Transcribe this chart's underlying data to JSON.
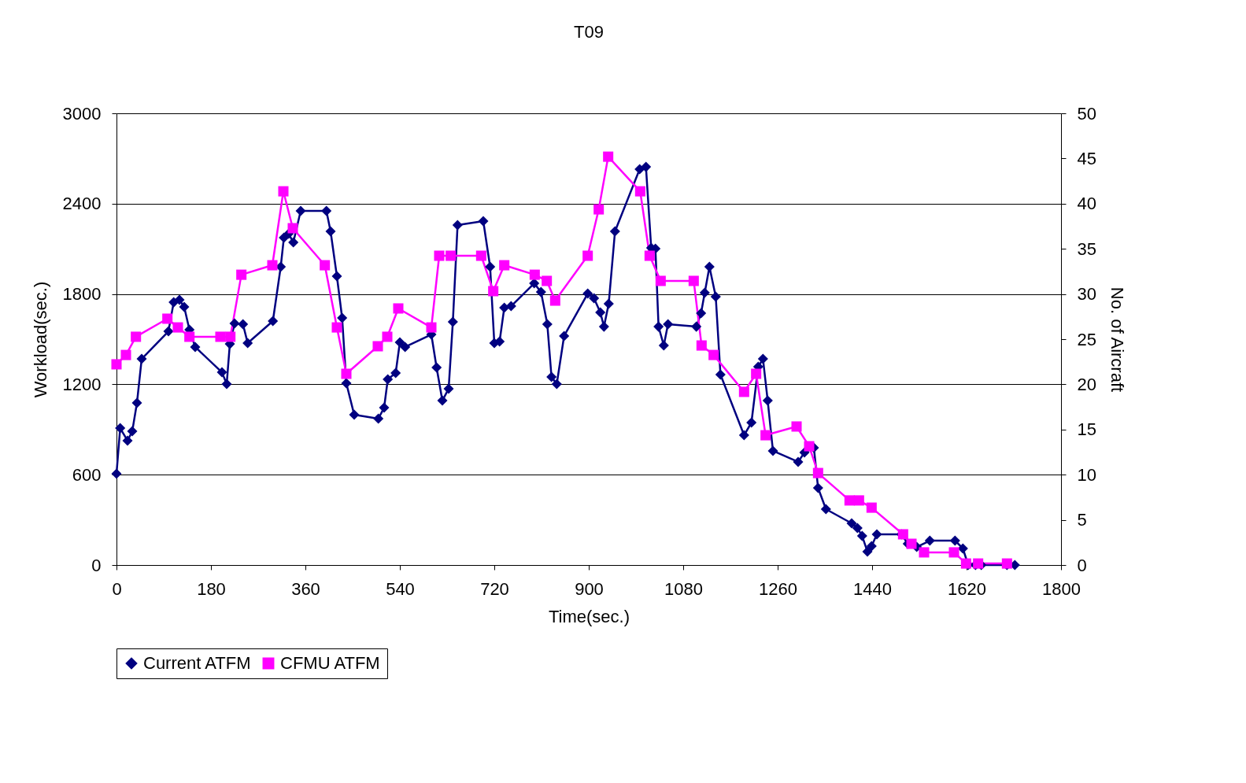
{
  "chart_data": {
    "type": "line",
    "title": "T09",
    "xlabel": "Time(sec.)",
    "ylabel": "Workload(sec.)",
    "y2label": "No. of Aircraft",
    "xlim": [
      0,
      1800
    ],
    "xticks": [
      0,
      180,
      360,
      540,
      720,
      900,
      1080,
      1260,
      1440,
      1620,
      1800
    ],
    "ylim": [
      0,
      3000
    ],
    "yticks": [
      0,
      600,
      1200,
      1800,
      2400,
      3000
    ],
    "y2lim": [
      0,
      50
    ],
    "y2ticks": [
      0,
      5,
      10,
      15,
      20,
      25,
      30,
      35,
      40,
      45,
      50
    ],
    "grid": "y",
    "legend": "bottom",
    "line_style": "solid",
    "series": [
      {
        "name": "Current ATFM",
        "color": "#000080",
        "marker": "diamond",
        "x": [
          0,
          7,
          21,
          30,
          39,
          48,
          99,
          109,
          120,
          129,
          139,
          150,
          201,
          210,
          216,
          225,
          241,
          250,
          298,
          313,
          319,
          328,
          337,
          351,
          400,
          408,
          420,
          430,
          438,
          453,
          499,
          510,
          517,
          532,
          540,
          550,
          600,
          610,
          621,
          633,
          641,
          650,
          699,
          712,
          720,
          730,
          739,
          752,
          796,
          809,
          821,
          829,
          839,
          853,
          898,
          910,
          922,
          929,
          938,
          950,
          997,
          1009,
          1019,
          1027,
          1033,
          1043,
          1051,
          1105,
          1114,
          1121,
          1130,
          1142,
          1151,
          1196,
          1210,
          1223,
          1232,
          1241,
          1251,
          1299,
          1311,
          1329,
          1337,
          1352,
          1401,
          1412,
          1421,
          1431,
          1439,
          1449,
          1496,
          1508,
          1525,
          1550,
          1598,
          1613,
          1623,
          1637,
          1648,
          1697,
          1712
        ],
        "values": [
          606,
          909,
          826,
          888,
          1077,
          1369,
          1552,
          1745,
          1761,
          1714,
          1563,
          1448,
          1280,
          1202,
          1468,
          1604,
          1599,
          1474,
          1620,
          1981,
          2174,
          2200,
          2143,
          2352,
          2352,
          2216,
          1918,
          1641,
          1207,
          998,
          972,
          1045,
          1233,
          1275,
          1479,
          1448,
          1531,
          1312,
          1092,
          1171,
          1615,
          2258,
          2284,
          1981,
          1474,
          1484,
          1709,
          1719,
          1871,
          1813,
          1599,
          1249,
          1202,
          1521,
          1803,
          1772,
          1678,
          1583,
          1735,
          2216,
          2629,
          2644,
          2106,
          2101,
          1583,
          1458,
          1599,
          1583,
          1672,
          1808,
          1981,
          1782,
          1265,
          862,
          946,
          1317,
          1369,
          1092,
          758,
          685,
          747,
          779,
          512,
          371,
          277,
          246,
          193,
          89,
          125,
          204,
          204,
          141,
          120,
          162,
          162,
          110,
          0,
          0,
          0,
          0,
          0
        ]
      },
      {
        "name": "CFMU ATFM",
        "color": "#ff00ff",
        "marker": "square",
        "x": [
          0,
          18,
          37,
          97,
          117,
          139,
          198,
          217,
          238,
          297,
          318,
          336,
          397,
          420,
          438,
          498,
          516,
          537,
          600,
          615,
          637,
          695,
          718,
          739,
          797,
          820,
          836,
          898,
          919,
          937,
          998,
          1016,
          1037,
          1100,
          1115,
          1138,
          1196,
          1219,
          1237,
          1296,
          1320,
          1337,
          1397,
          1415,
          1439,
          1499,
          1515,
          1539,
          1596,
          1619,
          1642,
          1697
        ],
        "values": [
          1333,
          1395,
          1516,
          1636,
          1578,
          1516,
          1516,
          1516,
          1928,
          1991,
          2482,
          2237,
          1991,
          1578,
          1270,
          1453,
          1516,
          1704,
          1578,
          2054,
          2054,
          2054,
          1819,
          1991,
          1928,
          1887,
          1756,
          2054,
          2362,
          2712,
          2482,
          2054,
          1887,
          1887,
          1458,
          1395,
          1150,
          1270,
          862,
          920,
          789,
          611,
          429,
          429,
          381,
          204,
          141,
          84,
          84,
          10,
          10,
          10
        ]
      }
    ]
  }
}
